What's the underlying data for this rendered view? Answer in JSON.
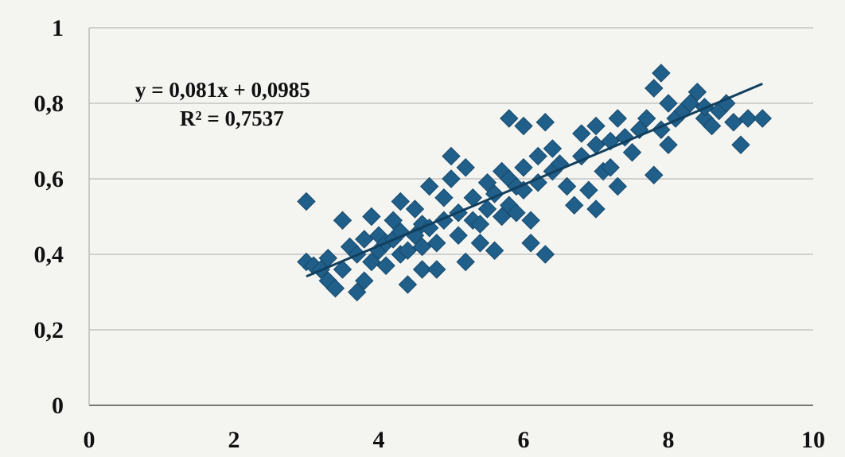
{
  "chart_data": {
    "type": "scatter",
    "title": "",
    "xlabel": "",
    "ylabel": "",
    "xlim": [
      0,
      10
    ],
    "ylim": [
      0,
      1
    ],
    "grid": "horizontal",
    "x_ticks": [
      "0",
      "2",
      "4",
      "6",
      "8",
      "10"
    ],
    "y_ticks": [
      "0",
      "0,2",
      "0,4",
      "0,6",
      "0,8",
      "1"
    ],
    "marker_color": "#1f5f8a",
    "marker_shape": "diamond",
    "trendline": {
      "type": "linear",
      "slope": 0.081,
      "intercept": 0.0985,
      "x_range": [
        3.0,
        9.3
      ],
      "equation": "y = 0,081x + 0,0985",
      "r_squared": "R² = 0,7537"
    },
    "points": [
      [
        3.0,
        0.54
      ],
      [
        3.0,
        0.38
      ],
      [
        3.1,
        0.37
      ],
      [
        3.2,
        0.36
      ],
      [
        3.3,
        0.39
      ],
      [
        3.3,
        0.33
      ],
      [
        3.4,
        0.31
      ],
      [
        3.5,
        0.36
      ],
      [
        3.5,
        0.49
      ],
      [
        3.6,
        0.42
      ],
      [
        3.7,
        0.3
      ],
      [
        3.7,
        0.4
      ],
      [
        3.8,
        0.33
      ],
      [
        3.8,
        0.44
      ],
      [
        3.9,
        0.5
      ],
      [
        3.9,
        0.38
      ],
      [
        4.0,
        0.45
      ],
      [
        4.0,
        0.41
      ],
      [
        4.1,
        0.43
      ],
      [
        4.1,
        0.37
      ],
      [
        4.2,
        0.49
      ],
      [
        4.2,
        0.44
      ],
      [
        4.3,
        0.54
      ],
      [
        4.3,
        0.46
      ],
      [
        4.3,
        0.4
      ],
      [
        4.4,
        0.41
      ],
      [
        4.4,
        0.32
      ],
      [
        4.5,
        0.52
      ],
      [
        4.5,
        0.45
      ],
      [
        4.6,
        0.48
      ],
      [
        4.6,
        0.42
      ],
      [
        4.6,
        0.36
      ],
      [
        4.7,
        0.58
      ],
      [
        4.7,
        0.47
      ],
      [
        4.8,
        0.43
      ],
      [
        4.8,
        0.36
      ],
      [
        4.9,
        0.55
      ],
      [
        4.9,
        0.49
      ],
      [
        5.0,
        0.66
      ],
      [
        5.0,
        0.6
      ],
      [
        5.1,
        0.51
      ],
      [
        5.1,
        0.45
      ],
      [
        5.2,
        0.63
      ],
      [
        5.2,
        0.38
      ],
      [
        5.3,
        0.55
      ],
      [
        5.3,
        0.49
      ],
      [
        5.4,
        0.48
      ],
      [
        5.4,
        0.43
      ],
      [
        5.5,
        0.59
      ],
      [
        5.5,
        0.52
      ],
      [
        5.6,
        0.56
      ],
      [
        5.6,
        0.41
      ],
      [
        5.7,
        0.62
      ],
      [
        5.7,
        0.5
      ],
      [
        5.8,
        0.6
      ],
      [
        5.8,
        0.53
      ],
      [
        5.8,
        0.76
      ],
      [
        5.9,
        0.58
      ],
      [
        5.9,
        0.51
      ],
      [
        6.0,
        0.63
      ],
      [
        6.0,
        0.57
      ],
      [
        6.0,
        0.74
      ],
      [
        6.1,
        0.49
      ],
      [
        6.1,
        0.43
      ],
      [
        6.2,
        0.66
      ],
      [
        6.2,
        0.59
      ],
      [
        6.3,
        0.75
      ],
      [
        6.3,
        0.4
      ],
      [
        6.4,
        0.68
      ],
      [
        6.4,
        0.62
      ],
      [
        6.5,
        0.64
      ],
      [
        6.6,
        0.58
      ],
      [
        6.7,
        0.53
      ],
      [
        6.8,
        0.72
      ],
      [
        6.8,
        0.66
      ],
      [
        6.9,
        0.57
      ],
      [
        7.0,
        0.74
      ],
      [
        7.0,
        0.69
      ],
      [
        7.0,
        0.52
      ],
      [
        7.1,
        0.62
      ],
      [
        7.2,
        0.7
      ],
      [
        7.2,
        0.63
      ],
      [
        7.3,
        0.76
      ],
      [
        7.3,
        0.58
      ],
      [
        7.4,
        0.71
      ],
      [
        7.5,
        0.67
      ],
      [
        7.6,
        0.73
      ],
      [
        7.7,
        0.76
      ],
      [
        7.8,
        0.84
      ],
      [
        7.8,
        0.61
      ],
      [
        7.9,
        0.88
      ],
      [
        7.9,
        0.73
      ],
      [
        8.0,
        0.8
      ],
      [
        8.0,
        0.69
      ],
      [
        8.1,
        0.76
      ],
      [
        8.2,
        0.78
      ],
      [
        8.3,
        0.8
      ],
      [
        8.4,
        0.83
      ],
      [
        8.5,
        0.76
      ],
      [
        8.5,
        0.79
      ],
      [
        8.6,
        0.74
      ],
      [
        8.7,
        0.78
      ],
      [
        8.8,
        0.8
      ],
      [
        8.9,
        0.75
      ],
      [
        9.0,
        0.69
      ],
      [
        9.1,
        0.76
      ],
      [
        9.3,
        0.76
      ]
    ]
  }
}
